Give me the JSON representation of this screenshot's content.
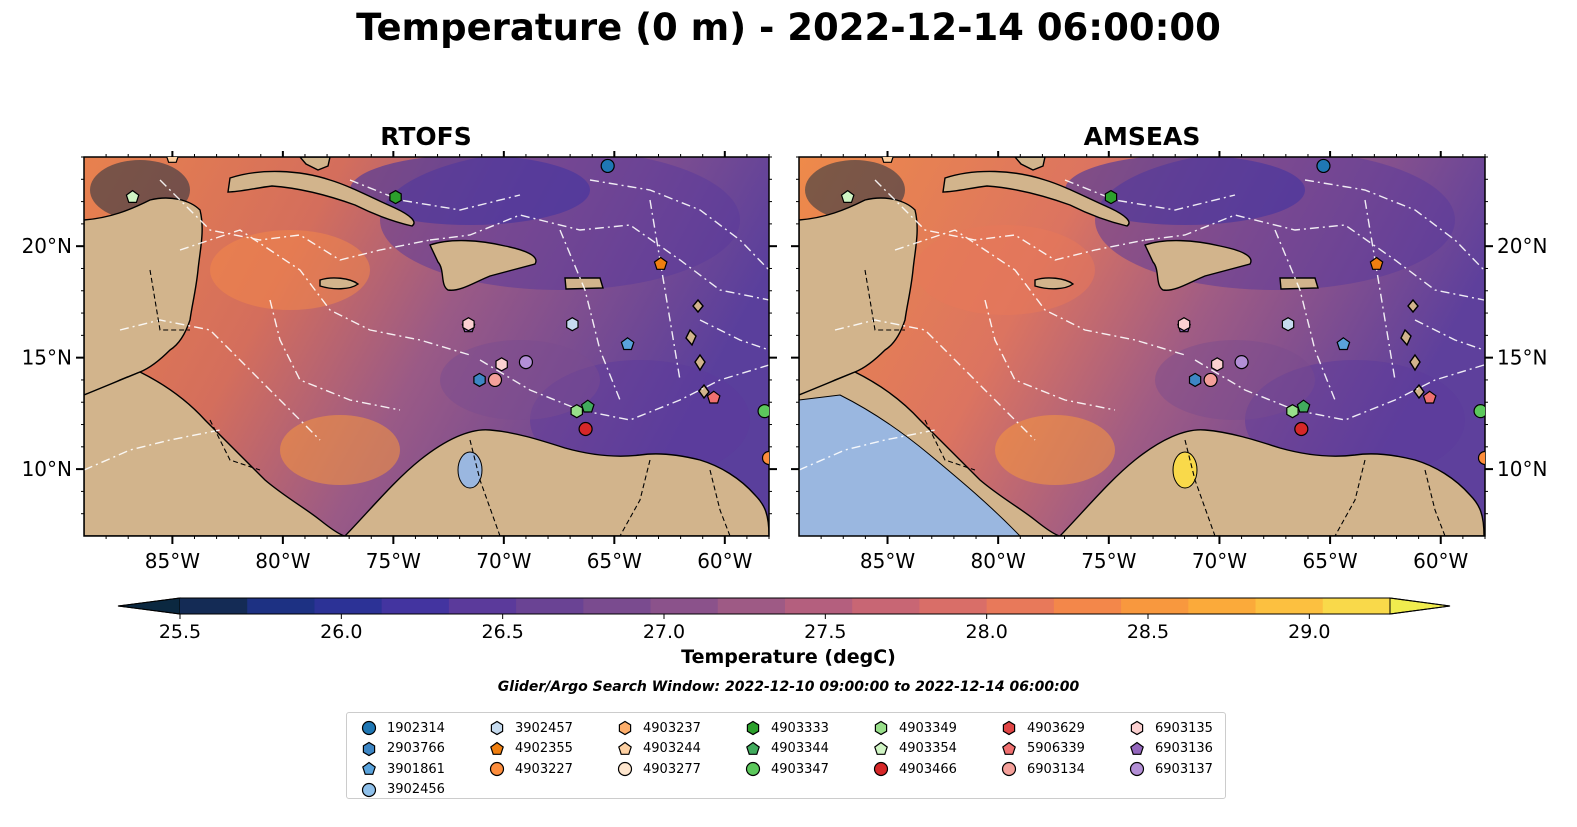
{
  "title": "Temperature (0 m) - 2022-12-14 06:00:00",
  "panels": [
    {
      "title": "RTOFS"
    },
    {
      "title": "AMSEAS"
    }
  ],
  "axes": {
    "lon_ticks": [
      "85°W",
      "80°W",
      "75°W",
      "70°W",
      "65°W",
      "60°W"
    ],
    "lat_ticks": [
      "20°N",
      "15°N",
      "10°N"
    ]
  },
  "colorbar": {
    "label": "Temperature (degC)",
    "ticks": [
      "25.5",
      "26.0",
      "26.5",
      "27.0",
      "27.5",
      "28.0",
      "28.5",
      "29.0"
    ],
    "colors": [
      "#0b2840",
      "#142b55",
      "#1d3183",
      "#2c3296",
      "#4334a0",
      "#5b3a9b",
      "#6a4394",
      "#7a4b8f",
      "#8b528b",
      "#9e5a85",
      "#b45f7e",
      "#c86674",
      "#d96e68",
      "#e8795a",
      "#f3874a",
      "#f8983e",
      "#fbaa3a",
      "#fcc040",
      "#f9d94a",
      "#f0ec4e"
    ]
  },
  "search_window": "Glider/Argo Search Window: 2022-12-10 09:00:00 to 2022-12-14 06:00:00",
  "legend": [
    [
      {
        "id": "1902314",
        "marker": "circle",
        "color": "#1f77b4"
      },
      {
        "id": "2903766",
        "marker": "hexagon",
        "color": "#3d86c4"
      },
      {
        "id": "3901861",
        "marker": "pentagon",
        "color": "#5aa3dc"
      },
      {
        "id": "3902456",
        "marker": "circle",
        "color": "#8fc0ea"
      }
    ],
    [
      {
        "id": "3902457",
        "marker": "hexagon",
        "color": "#c6dbef"
      },
      {
        "id": "4902355",
        "marker": "pentagon",
        "color": "#f07f10"
      },
      {
        "id": "4903227",
        "marker": "circle",
        "color": "#fd8d3c"
      }
    ],
    [
      {
        "id": "4903237",
        "marker": "hexagon",
        "color": "#fdae6b"
      },
      {
        "id": "4903244",
        "marker": "pentagon",
        "color": "#fdd0a2"
      },
      {
        "id": "4903277",
        "marker": "circle",
        "color": "#fee6ce"
      }
    ],
    [
      {
        "id": "4903333",
        "marker": "hexagon",
        "color": "#2ca02c"
      },
      {
        "id": "4903344",
        "marker": "pentagon",
        "color": "#41ab5d"
      },
      {
        "id": "4903347",
        "marker": "circle",
        "color": "#5cc85c"
      }
    ],
    [
      {
        "id": "4903349",
        "marker": "hexagon",
        "color": "#98df8a"
      },
      {
        "id": "4903354",
        "marker": "pentagon",
        "color": "#d0f5c4"
      },
      {
        "id": "4903466",
        "marker": "circle",
        "color": "#d62728"
      }
    ],
    [
      {
        "id": "4903629",
        "marker": "hexagon",
        "color": "#e04545"
      },
      {
        "id": "5906339",
        "marker": "pentagon",
        "color": "#f07070"
      },
      {
        "id": "6903134",
        "marker": "circle",
        "color": "#f4a09a"
      }
    ],
    [
      {
        "id": "6903135",
        "marker": "hexagon",
        "color": "#fbd0d0"
      },
      {
        "id": "6903136",
        "marker": "pentagon",
        "color": "#9467bd"
      },
      {
        "id": "6903137",
        "marker": "circle",
        "color": "#b38fd6"
      }
    ]
  ],
  "floats_on_map": [
    {
      "id": "1902314",
      "lon": -65.3,
      "lat": 23.6
    },
    {
      "id": "4903333",
      "lon": -74.9,
      "lat": 22.2
    },
    {
      "id": "4903354",
      "lon": -86.8,
      "lat": 22.2
    },
    {
      "id": "4903244",
      "lon": -85.0,
      "lat": 24.0
    },
    {
      "id": "4902355",
      "lon": -62.9,
      "lat": 19.2
    },
    {
      "id": "3902457",
      "lon": -66.9,
      "lat": 16.5
    },
    {
      "id": "6903136",
      "lon": -71.6,
      "lat": 16.4
    },
    {
      "id": "6903135",
      "lon": -71.6,
      "lat": 16.5
    },
    {
      "id": "3901861",
      "lon": -64.4,
      "lat": 15.6
    },
    {
      "id": "6903137",
      "lon": -69.0,
      "lat": 14.8
    },
    {
      "id": "6903135",
      "lon": -70.1,
      "lat": 14.7
    },
    {
      "id": "6903134",
      "lon": -70.4,
      "lat": 14.0
    },
    {
      "id": "2903766",
      "lon": -71.1,
      "lat": 14.0
    },
    {
      "id": "5906339",
      "lon": -60.5,
      "lat": 13.2
    },
    {
      "id": "4903344",
      "lon": -66.2,
      "lat": 12.8
    },
    {
      "id": "4903349",
      "lon": -66.7,
      "lat": 12.6
    },
    {
      "id": "4903466",
      "lon": -66.3,
      "lat": 11.8
    },
    {
      "id": "4903347",
      "lon": -58.2,
      "lat": 12.6
    },
    {
      "id": "4903227",
      "lon": -58.0,
      "lat": 10.5
    }
  ]
}
